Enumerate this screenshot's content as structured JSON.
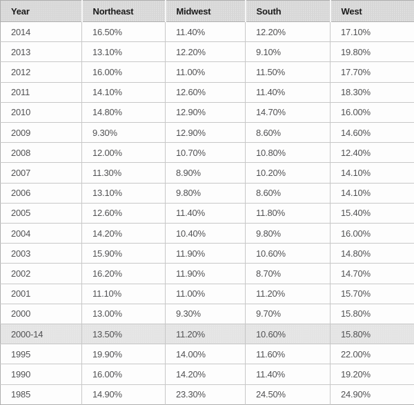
{
  "chart_data": {
    "type": "table",
    "columns": [
      "Year",
      "Northeast",
      "Midwest",
      "South",
      "West"
    ],
    "rows": [
      [
        "2014",
        "16.50%",
        "11.40%",
        "12.20%",
        "17.10%"
      ],
      [
        "2013",
        "13.10%",
        "12.20%",
        "9.10%",
        "19.80%"
      ],
      [
        "2012",
        "16.00%",
        "11.00%",
        "11.50%",
        "17.70%"
      ],
      [
        "2011",
        "14.10%",
        "12.60%",
        "11.40%",
        "18.30%"
      ],
      [
        "2010",
        "14.80%",
        "12.90%",
        "14.70%",
        "16.00%"
      ],
      [
        "2009",
        "9.30%",
        "12.90%",
        "8.60%",
        "14.60%"
      ],
      [
        "2008",
        "12.00%",
        "10.70%",
        "10.80%",
        "12.40%"
      ],
      [
        "2007",
        "11.30%",
        "8.90%",
        "10.20%",
        "14.10%"
      ],
      [
        "2006",
        "13.10%",
        "9.80%",
        "8.60%",
        "14.10%"
      ],
      [
        "2005",
        "12.60%",
        "11.40%",
        "11.80%",
        "15.40%"
      ],
      [
        "2004",
        "14.20%",
        "10.40%",
        "9.80%",
        "16.00%"
      ],
      [
        "2003",
        "15.90%",
        "11.90%",
        "10.60%",
        "14.80%"
      ],
      [
        "2002",
        "16.20%",
        "11.90%",
        "8.70%",
        "14.70%"
      ],
      [
        "2001",
        "11.10%",
        "11.00%",
        "11.20%",
        "15.70%"
      ],
      [
        "2000",
        "13.00%",
        "9.30%",
        "9.70%",
        "15.80%"
      ],
      [
        "2000-14",
        "13.50%",
        "11.20%",
        "10.60%",
        "15.80%"
      ],
      [
        "1995",
        "19.90%",
        "14.00%",
        "11.60%",
        "22.00%"
      ],
      [
        "1990",
        "16.00%",
        "14.20%",
        "11.40%",
        "19.20%"
      ],
      [
        "1985",
        "14.90%",
        "23.30%",
        "24.50%",
        "24.90%"
      ]
    ],
    "highlighted_row": "2000-14",
    "title": "",
    "legend": "none",
    "grid": "on"
  },
  "colors": {
    "header_bg": "#d7d7d7",
    "highlight_row_bg": "#e3e3e3",
    "border_outer": "#aeaeae",
    "border_inner": "#c7c7c7",
    "header_text": "#1b1b1b",
    "body_text": "#515153"
  }
}
